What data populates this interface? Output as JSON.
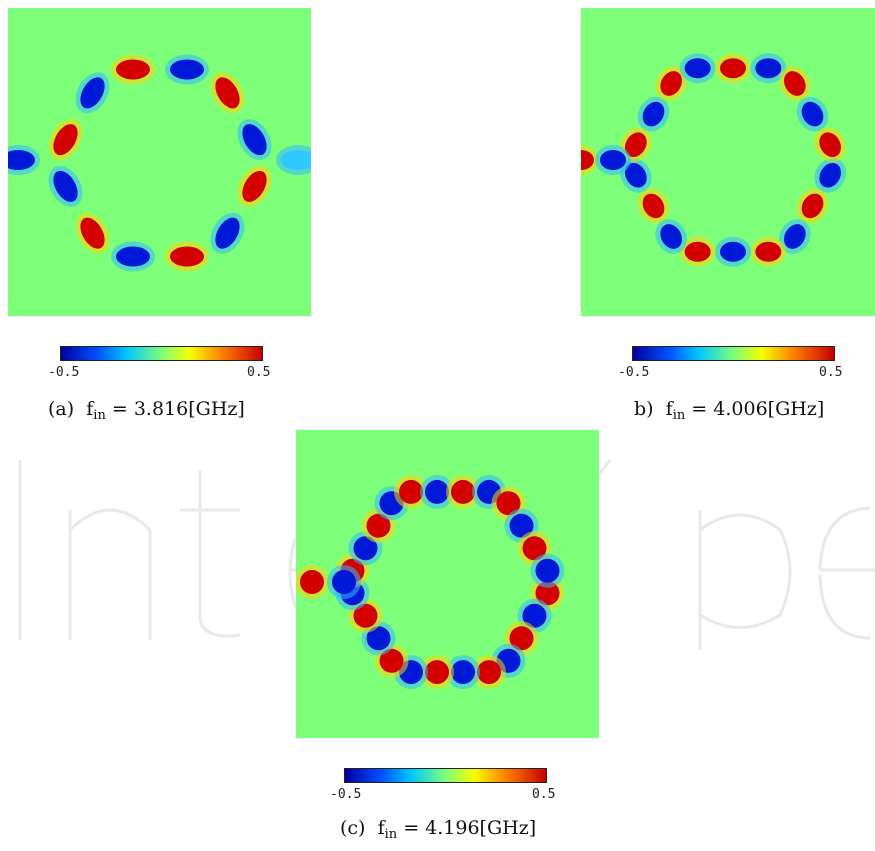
{
  "panels": [
    {
      "id": "a",
      "caption": {
        "label": "(a)",
        "var": "f",
        "sub": "in",
        "eq": "=",
        "value": "3.816[GHz]"
      },
      "colorbar": {
        "min": "-0.5",
        "max": "0.5"
      }
    },
    {
      "id": "b",
      "caption": {
        "label": "b)",
        "var": "f",
        "sub": "in",
        "eq": "=",
        "value": "4.006[GHz]"
      },
      "colorbar": {
        "min": "-0.5",
        "max": "0.5"
      }
    },
    {
      "id": "c",
      "caption": {
        "label": "(c)",
        "var": "f",
        "sub": "in",
        "eq": "=",
        "value": "4.196[GHz]"
      },
      "colorbar": {
        "min": "-0.5",
        "max": "0.5"
      }
    }
  ],
  "colors": {
    "background_field": "#7dff7a",
    "positive": "#d40000",
    "negative": "#0018d8",
    "colormap": [
      "#0000a0",
      "#0050ff",
      "#00c8ff",
      "#7dff7a",
      "#f5ff00",
      "#ff8000",
      "#c80000"
    ]
  }
}
